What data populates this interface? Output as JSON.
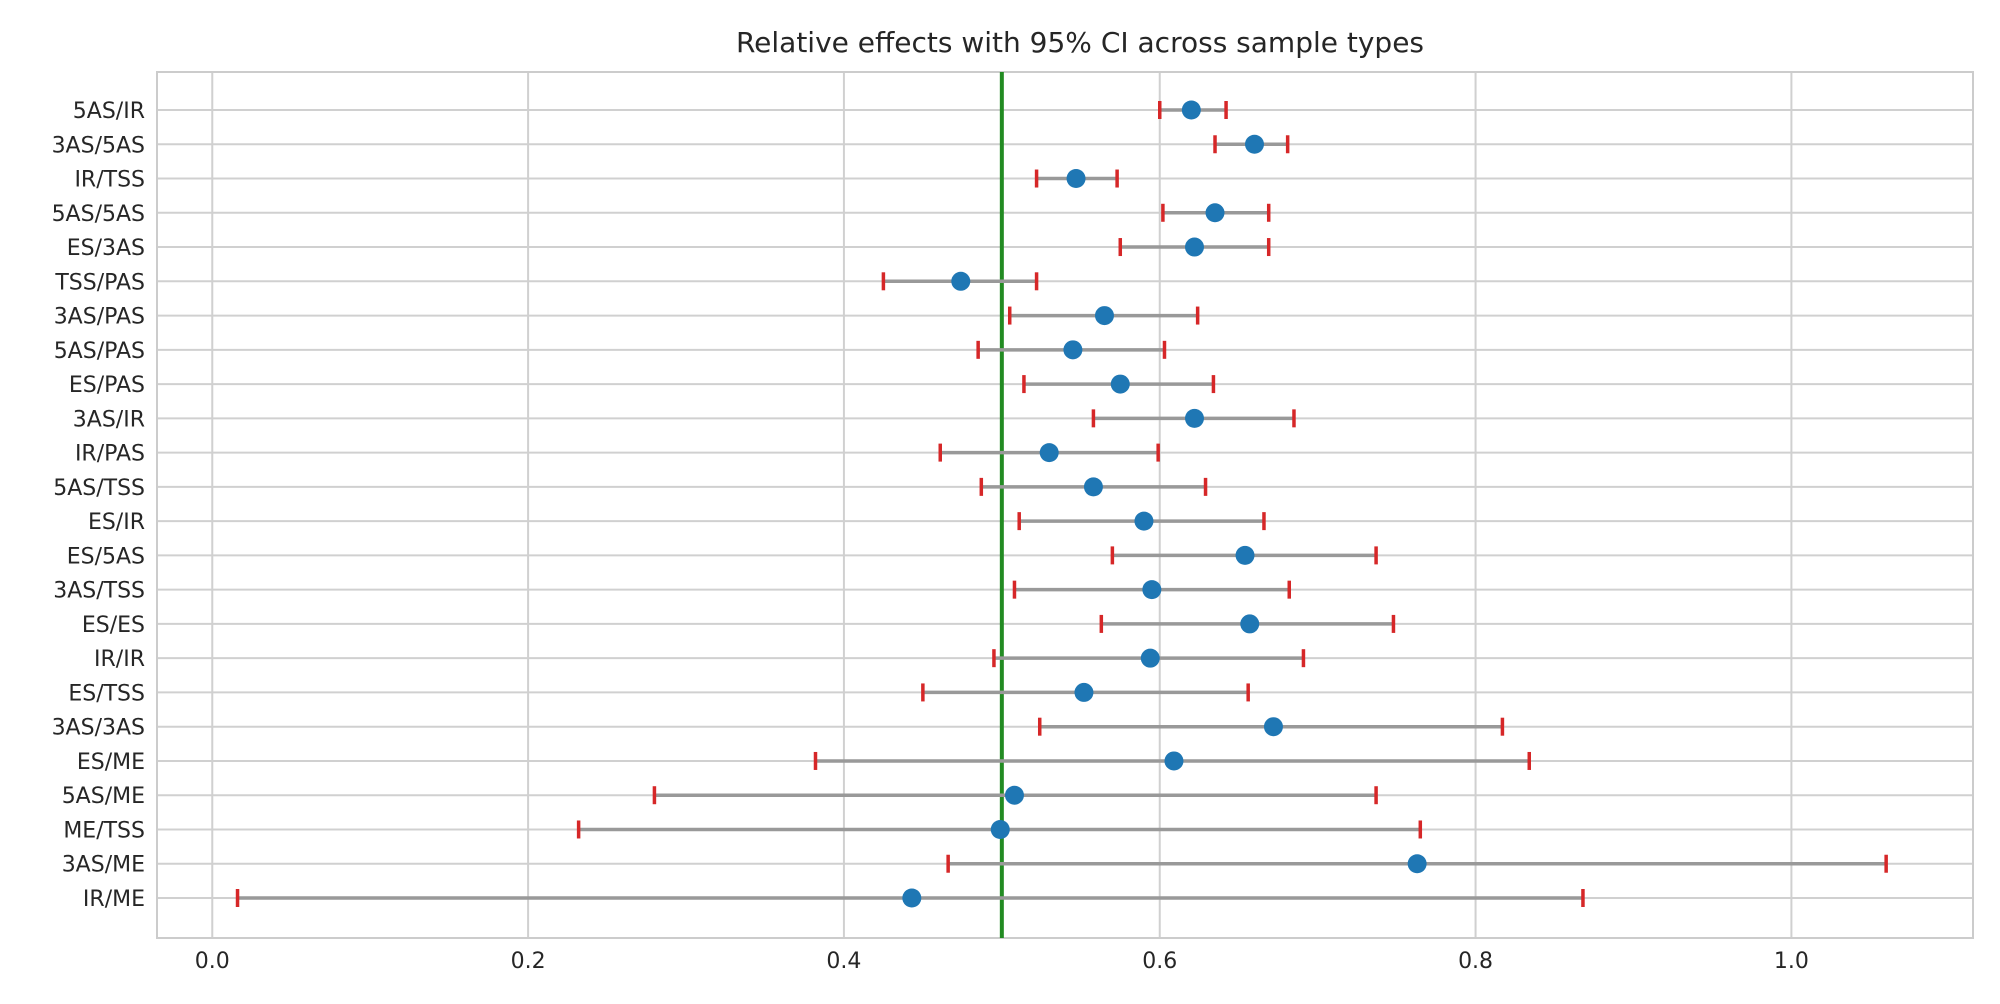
{
  "chart_data": {
    "type": "scatter",
    "subtype": "forest-plot",
    "title": "Relative effects with 95% CI across sample types",
    "xlabel": "",
    "ylabel": "",
    "xlim": [
      -0.035,
      1.115
    ],
    "xticks": [
      0.0,
      0.2,
      0.4,
      0.6,
      0.8,
      1.0
    ],
    "xtick_labels": [
      "0.0",
      "0.2",
      "0.4",
      "0.6",
      "0.8",
      "1.0"
    ],
    "reference_line": {
      "x": 0.5,
      "color": "#228b22"
    },
    "grid": true,
    "legend": "none",
    "colors": {
      "point": "#1f77b4",
      "ci_line": "#999999",
      "ci_cap": "#d62728",
      "grid": "#d0d0d0",
      "frame": "#cccccc"
    },
    "categories": [
      "5AS/IR",
      "3AS/5AS",
      "IR/TSS",
      "5AS/5AS",
      "ES/3AS",
      "TSS/PAS",
      "3AS/PAS",
      "5AS/PAS",
      "ES/PAS",
      "3AS/IR",
      "IR/PAS",
      "5AS/TSS",
      "ES/IR",
      "ES/5AS",
      "3AS/TSS",
      "ES/ES",
      "IR/IR",
      "ES/TSS",
      "3AS/3AS",
      "ES/ME",
      "5AS/ME",
      "ME/TSS",
      "3AS/ME",
      "IR/ME"
    ],
    "estimate": [
      0.62,
      0.66,
      0.547,
      0.635,
      0.622,
      0.474,
      0.565,
      0.545,
      0.575,
      0.622,
      0.53,
      0.558,
      0.59,
      0.654,
      0.595,
      0.657,
      0.594,
      0.552,
      0.672,
      0.609,
      0.508,
      0.499,
      0.763,
      0.443
    ],
    "ci_lower": [
      0.6,
      0.635,
      0.522,
      0.602,
      0.575,
      0.425,
      0.505,
      0.485,
      0.514,
      0.558,
      0.461,
      0.487,
      0.511,
      0.57,
      0.508,
      0.563,
      0.495,
      0.45,
      0.524,
      0.382,
      0.28,
      0.232,
      0.466,
      0.016
    ],
    "ci_upper": [
      0.642,
      0.681,
      0.573,
      0.669,
      0.669,
      0.522,
      0.624,
      0.603,
      0.634,
      0.685,
      0.599,
      0.629,
      0.666,
      0.737,
      0.682,
      0.748,
      0.691,
      0.656,
      0.817,
      0.834,
      0.737,
      0.765,
      1.06,
      0.868
    ]
  }
}
